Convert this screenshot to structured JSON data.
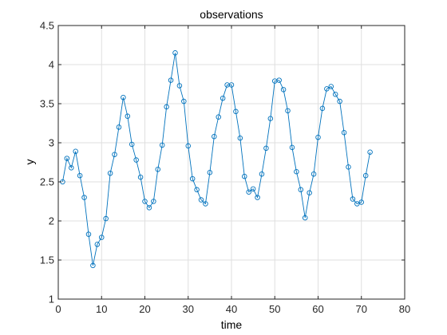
{
  "chart_data": {
    "type": "line",
    "title": "observations",
    "xlabel": "time",
    "ylabel": "y",
    "xlim": [
      0,
      80
    ],
    "ylim": [
      1,
      4.5
    ],
    "xticks": [
      0,
      10,
      20,
      30,
      40,
      50,
      60,
      70,
      80
    ],
    "yticks": [
      1,
      1.5,
      2,
      2.5,
      3,
      3.5,
      4,
      4.5
    ],
    "xtick_labels": [
      "0",
      "10",
      "20",
      "30",
      "40",
      "50",
      "60",
      "70",
      "80"
    ],
    "ytick_labels": [
      "1",
      "1.5",
      "2",
      "2.5",
      "3",
      "3.5",
      "4",
      "4.5"
    ],
    "grid": true,
    "marker": "circle",
    "line_color": "#0072BD",
    "series": [
      {
        "x": [
          1,
          2,
          3,
          4,
          5,
          6,
          7,
          8,
          9,
          10,
          11,
          12,
          13,
          14,
          15,
          16,
          17,
          18,
          19,
          20,
          21,
          22,
          23,
          24,
          25,
          26,
          27,
          28,
          29,
          30,
          31,
          32,
          33,
          34,
          35,
          36,
          37,
          38,
          39,
          40,
          41,
          42,
          43,
          44,
          45,
          46,
          47,
          48,
          49,
          50,
          51,
          52,
          53,
          54,
          55,
          56,
          57,
          58,
          59,
          60,
          61,
          62,
          63,
          64,
          65,
          66,
          67,
          68,
          69,
          70,
          71,
          72
        ],
        "y": [
          2.5,
          2.8,
          2.68,
          2.89,
          2.58,
          2.3,
          1.83,
          1.43,
          1.7,
          1.79,
          2.03,
          2.61,
          2.85,
          3.2,
          3.58,
          3.34,
          2.98,
          2.78,
          2.56,
          2.25,
          2.17,
          2.25,
          2.66,
          2.97,
          3.46,
          3.8,
          4.15,
          3.73,
          3.53,
          2.96,
          2.54,
          2.4,
          2.27,
          2.22,
          2.62,
          3.08,
          3.33,
          3.57,
          3.74,
          3.74,
          3.4,
          3.06,
          2.57,
          2.37,
          2.41,
          2.3,
          2.6,
          2.93,
          3.31,
          3.79,
          3.8,
          3.68,
          3.41,
          2.94,
          2.63,
          2.4,
          2.04,
          2.36,
          2.6,
          3.07,
          3.44,
          3.69,
          3.72,
          3.62,
          3.53,
          3.13,
          2.69,
          2.28,
          2.22,
          2.24,
          2.58,
          2.88
        ]
      }
    ]
  }
}
